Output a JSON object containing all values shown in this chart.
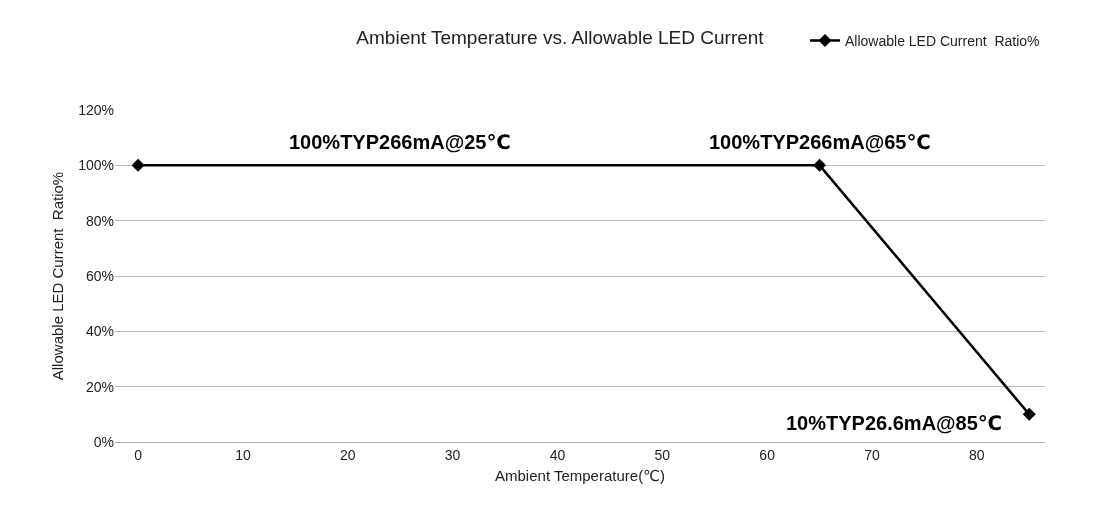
{
  "chart_data": {
    "type": "line",
    "title": "Ambient Temperature vs. Allowable LED Current",
    "xlabel": "Ambient Temperature(℃)",
    "ylabel": "Allowable LED Current  Ratio%",
    "x": [
      0,
      65,
      85
    ],
    "series": [
      {
        "name": "Allowable LED Current  Ratio%",
        "color": "#000000",
        "values": [
          100,
          100,
          10
        ]
      }
    ],
    "xlim": [
      -2.2,
      86.5
    ],
    "xticks": [
      0,
      10,
      20,
      30,
      40,
      50,
      60,
      70,
      80
    ],
    "ylim": [
      0,
      120
    ],
    "yticks": [
      {
        "value": 0,
        "label": "0%"
      },
      {
        "value": 20,
        "label": "20%"
      },
      {
        "value": 40,
        "label": "40%"
      },
      {
        "value": 60,
        "label": "60%"
      },
      {
        "value": 80,
        "label": "80%"
      },
      {
        "value": 100,
        "label": "100%"
      },
      {
        "value": 120,
        "label": "120%"
      }
    ],
    "annotations": [
      {
        "text": "100%TYP266mA@25℃",
        "x": 25,
        "y": 100
      },
      {
        "text": "100%TYP266mA@65℃",
        "x": 65,
        "y": 100
      },
      {
        "text": "10%TYP26.6mA@85℃",
        "x": 85,
        "y": 10
      }
    ],
    "grid": "y",
    "legend": "top right",
    "marker": "diamond",
    "line_style": "solid"
  }
}
